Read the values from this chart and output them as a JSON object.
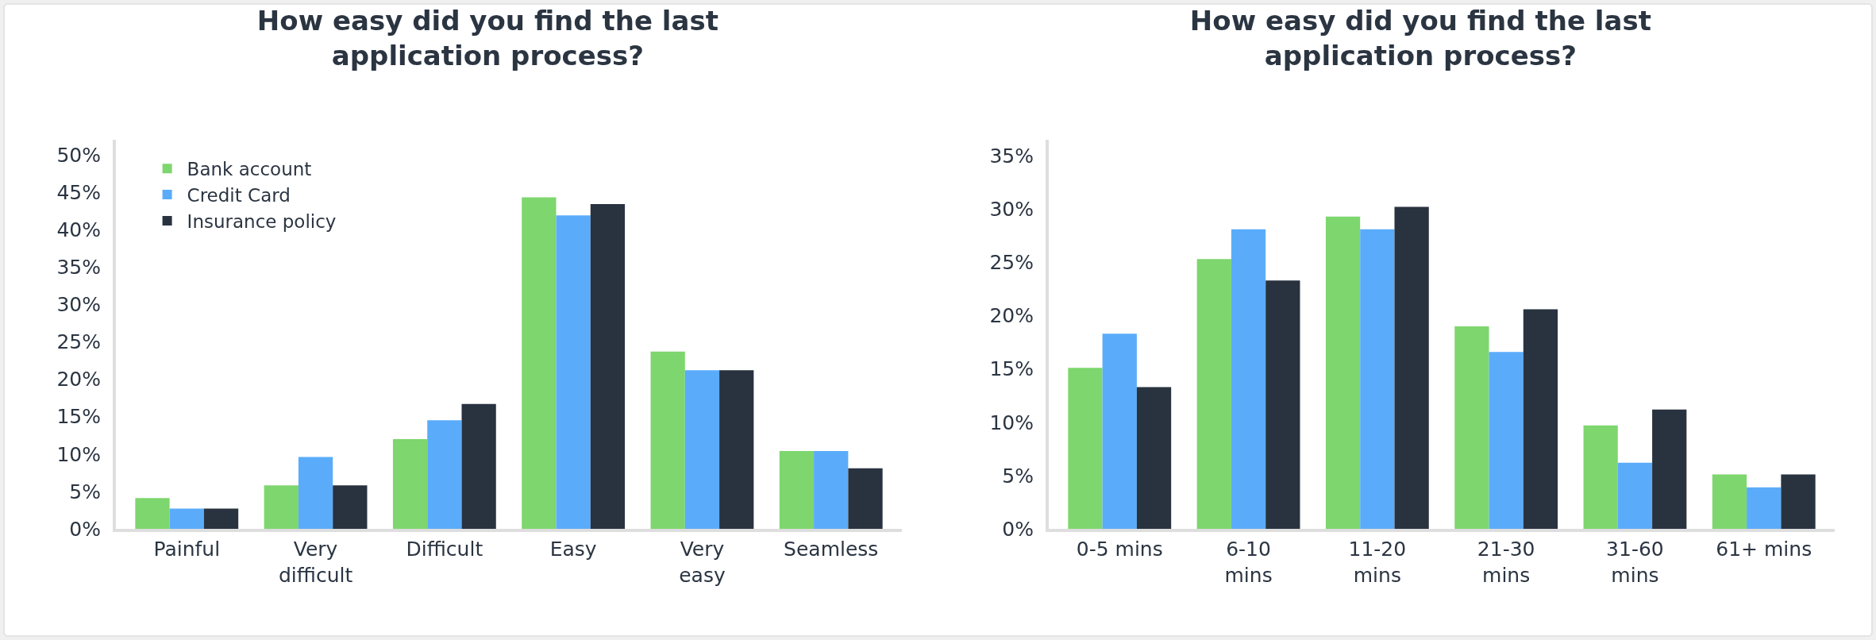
{
  "chart_data": [
    {
      "type": "bar",
      "title": "How easy did you find the last application process?",
      "categories": [
        "Painful",
        "Very difficult",
        "Difficult",
        "Easy",
        "Very easy",
        "Seamless"
      ],
      "series": [
        {
          "name": "Bank account",
          "color": "#7ed66e",
          "values": [
            4.1,
            5.8,
            12.0,
            44.3,
            23.7,
            10.4
          ]
        },
        {
          "name": "Credit Card",
          "color": "#5aacfa",
          "values": [
            2.7,
            9.6,
            14.5,
            41.9,
            21.2,
            10.4
          ]
        },
        {
          "name": "Insurance policy",
          "color": "#293340",
          "values": [
            2.7,
            5.8,
            16.7,
            43.4,
            21.2,
            8.1
          ]
        }
      ],
      "ylim": [
        0,
        52
      ],
      "yticks": [
        {
          "value": 0,
          "label": "0%"
        },
        {
          "value": 5,
          "label": "5%"
        },
        {
          "value": 10,
          "label": "10%"
        },
        {
          "value": 15,
          "label": "15%"
        },
        {
          "value": 20,
          "label": "20%"
        },
        {
          "value": 25,
          "label": "25%"
        },
        {
          "value": 30,
          "label": "30%"
        },
        {
          "value": 35,
          "label": "35%"
        },
        {
          "value": 40,
          "label": "40%"
        },
        {
          "value": 45,
          "label": "45%"
        },
        {
          "value": 50,
          "label": "50%"
        }
      ],
      "grid": false,
      "legend": "top left"
    },
    {
      "type": "bar",
      "title": "How easy did you find the last application process?",
      "categories": [
        "0-5 mins",
        "6-10 mins",
        "11-20 mins",
        "21-30 mins",
        "31-60 mins",
        "61+ mins"
      ],
      "series": [
        {
          "color": "#7ed66e",
          "values": [
            15.1,
            25.3,
            29.3,
            19.0,
            9.7,
            5.1
          ]
        },
        {
          "color": "#5aacfa",
          "values": [
            18.3,
            28.1,
            28.1,
            16.6,
            6.2,
            3.9
          ]
        },
        {
          "color": "#293340",
          "values": [
            13.3,
            23.3,
            30.2,
            20.6,
            11.2,
            5.1
          ]
        }
      ],
      "ylim": [
        0,
        36.5
      ],
      "yticks": [
        {
          "value": 0,
          "label": "0%"
        },
        {
          "value": 5,
          "label": "5%"
        },
        {
          "value": 10,
          "label": "10%"
        },
        {
          "value": 15,
          "label": "15%"
        },
        {
          "value": 20,
          "label": "20%"
        },
        {
          "value": 25,
          "label": "25%"
        },
        {
          "value": 30,
          "label": "30%"
        },
        {
          "value": 35,
          "label": "35%"
        }
      ],
      "grid": false,
      "legend": false
    }
  ]
}
